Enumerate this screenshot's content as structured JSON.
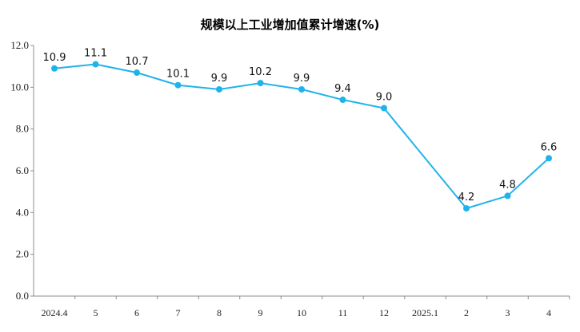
{
  "chart": {
    "title": "规模以上工业增加值累计增速(%)"
  },
  "chart_data": {
    "type": "line",
    "title": "规模以上工业增加值累计增速(%)",
    "xlabel": "",
    "ylabel": "",
    "categories": [
      "2024.4",
      "5",
      "6",
      "7",
      "8",
      "9",
      "10",
      "11",
      "12",
      "2025.1",
      "2",
      "3",
      "4"
    ],
    "series": [
      {
        "values": [
          10.9,
          11.1,
          10.7,
          10.1,
          9.9,
          10.2,
          9.9,
          9.4,
          9.0,
          null,
          4.2,
          4.8,
          6.6
        ],
        "labels": [
          "10.9",
          "11.1",
          "10.7",
          "10.1",
          "9.9",
          "10.2",
          "9.9",
          "9.4",
          "9.0",
          "",
          "4.2",
          "4.8",
          "6.6"
        ],
        "color": "#1fb3ea"
      }
    ],
    "y_ticks": [
      "0.0",
      "2.0",
      "4.0",
      "6.0",
      "8.0",
      "10.0",
      "12.0"
    ],
    "ylim": [
      0,
      12
    ],
    "grid": false,
    "legend": "none"
  }
}
